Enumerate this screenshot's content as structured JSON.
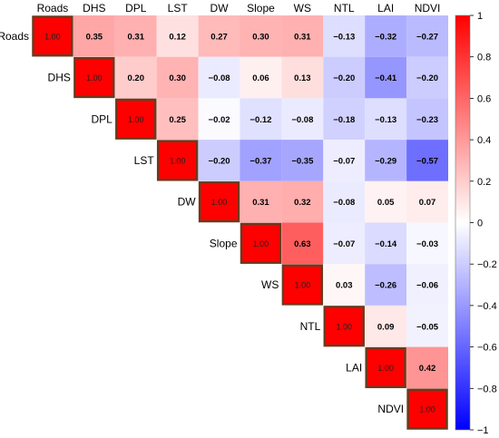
{
  "chart_data": {
    "type": "heatmap",
    "variables": [
      "Roads",
      "DHS",
      "DPL",
      "LST",
      "DW",
      "Slope",
      "WS",
      "NTL",
      "LAI",
      "NDVI"
    ],
    "matrix": [
      [
        1.0,
        0.35,
        0.31,
        0.12,
        0.27,
        0.3,
        0.31,
        -0.13,
        -0.32,
        -0.27
      ],
      [
        null,
        1.0,
        0.2,
        0.3,
        -0.08,
        0.06,
        0.13,
        -0.2,
        -0.41,
        -0.2
      ],
      [
        null,
        null,
        1.0,
        0.25,
        -0.02,
        -0.12,
        -0.08,
        -0.18,
        -0.13,
        -0.23
      ],
      [
        null,
        null,
        null,
        1.0,
        -0.2,
        -0.37,
        -0.35,
        -0.07,
        -0.29,
        -0.57
      ],
      [
        null,
        null,
        null,
        null,
        1.0,
        0.31,
        0.32,
        -0.08,
        0.05,
        0.07
      ],
      [
        null,
        null,
        null,
        null,
        null,
        1.0,
        0.63,
        -0.07,
        -0.14,
        -0.03
      ],
      [
        null,
        null,
        null,
        null,
        null,
        null,
        1.0,
        0.03,
        -0.26,
        -0.06
      ],
      [
        null,
        null,
        null,
        null,
        null,
        null,
        null,
        1.0,
        0.09,
        -0.05
      ],
      [
        null,
        null,
        null,
        null,
        null,
        null,
        null,
        null,
        1.0,
        0.42
      ],
      [
        null,
        null,
        null,
        null,
        null,
        null,
        null,
        null,
        null,
        1.0
      ]
    ],
    "value_labels": [
      [
        "1.00",
        "0.35",
        "0.31",
        "0.12",
        "0.27",
        "0.30",
        "0.31",
        "−0.13",
        "−0.32",
        "−0.27"
      ],
      [
        "",
        "1.00",
        "0.20",
        "0.30",
        "−0.08",
        "0.06",
        "0.13",
        "−0.20",
        "−0.41",
        "−0.20"
      ],
      [
        "",
        "",
        "1.00",
        "0.25",
        "−0.02",
        "−0.12",
        "−0.08",
        "−0.18",
        "−0.13",
        "−0.23"
      ],
      [
        "",
        "",
        "",
        "1.00",
        "−0.20",
        "−0.37",
        "−0.35",
        "−0.07",
        "−0.29",
        "−0.57"
      ],
      [
        "",
        "",
        "",
        "",
        "1.00",
        "0.31",
        "0.32",
        "−0.08",
        "0.05",
        "0.07"
      ],
      [
        "",
        "",
        "",
        "",
        "",
        "1.00",
        "0.63",
        "−0.07",
        "−0.14",
        "−0.03"
      ],
      [
        "",
        "",
        "",
        "",
        "",
        "",
        "1.00",
        "0.03",
        "−0.26",
        "−0.06"
      ],
      [
        "",
        "",
        "",
        "",
        "",
        "",
        "",
        "1.00",
        "0.09",
        "−0.05"
      ],
      [
        "",
        "",
        "",
        "",
        "",
        "",
        "",
        "",
        "1.00",
        "0.42"
      ],
      [
        "",
        "",
        "",
        "",
        "",
        "",
        "",
        "",
        "",
        "1.00"
      ]
    ],
    "colorbar": {
      "range": [
        -1,
        1
      ],
      "tick_values": [
        1,
        0.8,
        0.6,
        0.4,
        0.2,
        0,
        -0.2,
        -0.4,
        -0.6,
        -0.8,
        -1
      ],
      "tick_labels": [
        "1",
        "0.8",
        "0.6",
        "0.4",
        "0.2",
        "0",
        "−0.2",
        "−0.4",
        "−0.6",
        "−0.8",
        "−1"
      ],
      "colors": {
        "low": "#0000ff",
        "mid": "#ffffff",
        "high": "#ff0000"
      }
    },
    "grid": false,
    "title": "",
    "xlabel": "",
    "ylabel": ""
  }
}
